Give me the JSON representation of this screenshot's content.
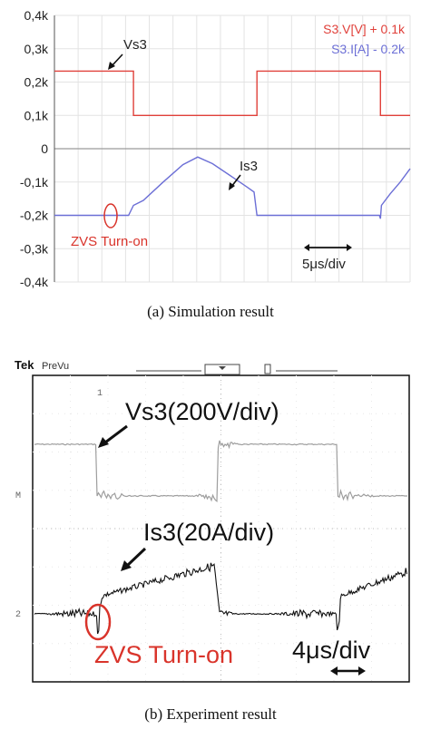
{
  "figure_a": {
    "caption": "(a)  Simulation  result",
    "legend": {
      "voltage": "S3.V[V] + 0.1k",
      "current": "S3.I[A] - 0.2k",
      "voltage_color": "#e0403a",
      "current_color": "#6c6fd6"
    },
    "annotations": {
      "vs": "Vs3",
      "is": "Is3",
      "zvs": "ZVS Turn-on",
      "timescale": "5μs/div"
    }
  },
  "figure_b": {
    "caption": "(b)  Experiment  result",
    "brand": "Tek",
    "mode": "PreVu",
    "annotations": {
      "vs": "Vs3(200V/div)",
      "is": "Is3(20A/div)",
      "zvs": "ZVS Turn-on",
      "timescale": "4μs/div"
    },
    "markers": {
      "ch1": "1",
      "math": "M",
      "ch2": "2"
    }
  },
  "chart_data": [
    {
      "type": "line",
      "title": "",
      "xlabel": "",
      "ylabel": "",
      "ylim": [
        -0.4,
        0.4
      ],
      "yunit": "k",
      "yticks": [
        "0,4k",
        "0,3k",
        "0,2k",
        "0,1k",
        "0",
        "-0,1k",
        "-0,2k",
        "-0,3k",
        "-0,4k"
      ],
      "xlim": [
        0,
        36
      ],
      "x_unit": "μs",
      "grid": true,
      "legend_position": "top-right",
      "series": [
        {
          "name": "S3.V[V] + 0.1k",
          "x": [
            0,
            8,
            8,
            20.5,
            20.5,
            33,
            33,
            36
          ],
          "y": [
            0.233,
            0.233,
            0.1,
            0.1,
            0.233,
            0.233,
            0.1,
            0.1
          ]
        },
        {
          "name": "S3.I[A] - 0.2k",
          "x": [
            0,
            7.5,
            8,
            9,
            11,
            13,
            14.5,
            16,
            18,
            19.5,
            20.2,
            20.5,
            25,
            30,
            32.9,
            33,
            33.1,
            34,
            35,
            36
          ],
          "y": [
            -0.2,
            -0.2,
            -0.17,
            -0.155,
            -0.1,
            -0.048,
            -0.025,
            -0.045,
            -0.085,
            -0.115,
            -0.13,
            -0.2,
            -0.2,
            -0.2,
            -0.2,
            -0.21,
            -0.17,
            -0.135,
            -0.1,
            -0.06
          ]
        }
      ]
    }
  ]
}
